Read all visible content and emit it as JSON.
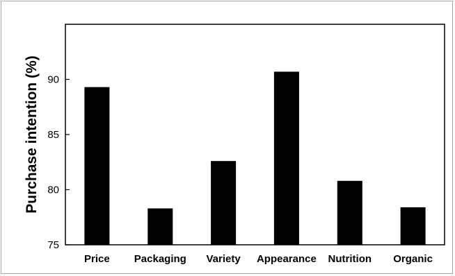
{
  "chart_data": {
    "type": "bar",
    "title": "",
    "xlabel": "",
    "ylabel": "Purchase intention (%)",
    "categories": [
      "Price",
      "Packaging",
      "Variety",
      "Appearance",
      "Nutrition",
      "Organic"
    ],
    "values": [
      89.3,
      78.3,
      82.6,
      90.7,
      80.8,
      78.4
    ],
    "ylim": [
      75,
      95
    ],
    "yticks": [
      75,
      80,
      85,
      90
    ],
    "grid": false,
    "bar_color": "#000000"
  }
}
